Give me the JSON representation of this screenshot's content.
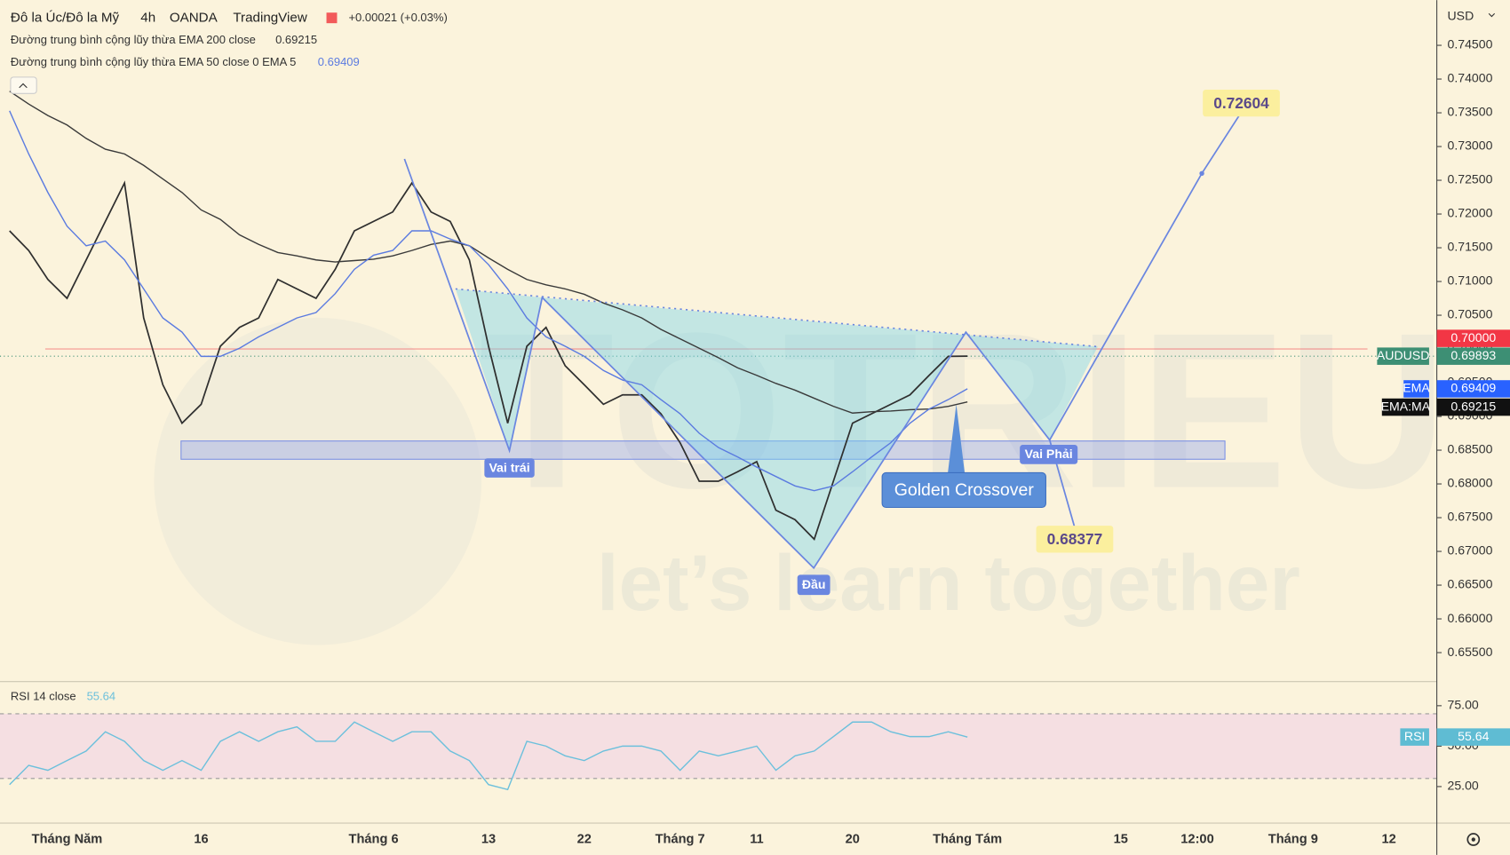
{
  "header": {
    "symbol": "Đô la Úc/Đô la Mỹ",
    "interval": "4h",
    "source": "OANDA",
    "platform": "TradingView",
    "change": "+0.00021 (+0.03%)",
    "currency": "USD"
  },
  "watermark": {
    "title": "TOTRIEU",
    "tagline": "let’s learn together"
  },
  "chart_data": [
    {
      "type": "line",
      "grid": false,
      "categories": [
        null,
        null,
        null,
        "Tháng Năm",
        null,
        null,
        null,
        null,
        null,
        null,
        "16",
        null,
        null,
        null,
        null,
        null,
        null,
        null,
        null,
        "Tháng 6",
        null,
        null,
        null,
        null,
        null,
        "13",
        null,
        null,
        null,
        null,
        "22",
        null,
        null,
        null,
        null,
        "Tháng 7",
        null,
        null,
        null,
        "11",
        null,
        null,
        null,
        null,
        "20",
        null,
        null,
        null,
        null,
        null,
        "Tháng Tám",
        null,
        null,
        null,
        null,
        null,
        null,
        null,
        "15",
        null,
        null,
        null,
        "12:00",
        null,
        null,
        null,
        null,
        "Tháng 9",
        null,
        null,
        null,
        null,
        "12",
        null,
        null
      ],
      "ylim": [
        0.6507,
        0.7517
      ],
      "yticks": [
        {
          "value": 0.655,
          "label": "0.65500"
        },
        {
          "value": 0.66,
          "label": "0.66000"
        },
        {
          "value": 0.665,
          "label": "0.66500"
        },
        {
          "value": 0.67,
          "label": "0.67000"
        },
        {
          "value": 0.675,
          "label": "0.67500"
        },
        {
          "value": 0.68,
          "label": "0.68000"
        },
        {
          "value": 0.685,
          "label": "0.68500"
        },
        {
          "value": 0.69,
          "label": "0.69000"
        },
        {
          "value": 0.695,
          "label": "0.69500"
        },
        {
          "value": 0.7,
          "label": "0.70000"
        },
        {
          "value": 0.705,
          "label": "0.70500"
        },
        {
          "value": 0.71,
          "label": "0.71000"
        },
        {
          "value": 0.715,
          "label": "0.71500"
        },
        {
          "value": 0.72,
          "label": "0.72000"
        },
        {
          "value": 0.725,
          "label": "0.72500"
        },
        {
          "value": 0.73,
          "label": "0.73000"
        },
        {
          "value": 0.735,
          "label": "0.73500"
        },
        {
          "value": 0.74,
          "label": "0.74000"
        },
        {
          "value": 0.745,
          "label": "0.74500"
        }
      ],
      "series": [
        {
          "name": "AUDUSD",
          "color": "#2f2f2f",
          "badge_color": "#3d8f74",
          "values": [
            0.7175,
            0.7146,
            0.7103,
            0.7075,
            0.7132,
            0.7189,
            0.7246,
            0.7046,
            0.6947,
            0.689,
            0.6918,
            0.7004,
            0.7032,
            0.7046,
            0.7103,
            0.7089,
            0.7075,
            0.7118,
            0.7175,
            0.7189,
            0.7203,
            0.7246,
            0.7203,
            0.7189,
            0.7132,
            0.7004,
            0.689,
            0.7004,
            0.7032,
            0.6975,
            0.6947,
            0.6918,
            0.6932,
            0.6932,
            0.6904,
            0.6861,
            0.6804,
            0.6804,
            0.6818,
            0.6833,
            0.6761,
            0.6747,
            0.6718,
            0.6804,
            0.689,
            0.6904,
            0.6918,
            0.6932,
            0.6961,
            0.6989,
            0.69893,
            null,
            null,
            null,
            null,
            null,
            null,
            null,
            null,
            null,
            null,
            null,
            null,
            null,
            null,
            null,
            null,
            null,
            null,
            null,
            null,
            null,
            null,
            null,
            null
          ]
        },
        {
          "name": "Đường trung bình cộng lũy thừa EMA 200 close",
          "badge": "EMA:MA",
          "color": "#3a3a3a",
          "badge_color": "#111111",
          "values": [
            0.7382,
            0.7363,
            0.7346,
            0.7332,
            0.7312,
            0.7296,
            0.7289,
            0.7272,
            0.7252,
            0.7232,
            0.7206,
            0.7192,
            0.7169,
            0.7155,
            0.7143,
            0.7138,
            0.7132,
            0.7129,
            0.7131,
            0.7133,
            0.7138,
            0.7146,
            0.7155,
            0.716,
            0.7153,
            0.7135,
            0.7118,
            0.7103,
            0.7095,
            0.7089,
            0.7081,
            0.7068,
            0.7058,
            0.7046,
            0.7029,
            0.7015,
            0.7001,
            0.6987,
            0.6972,
            0.6961,
            0.6949,
            0.6939,
            0.6927,
            0.6915,
            0.6905,
            0.6907,
            0.6908,
            0.691,
            0.6911,
            0.6915,
            0.69215,
            null,
            null,
            null,
            null,
            null,
            null,
            null,
            null,
            null,
            null,
            null,
            null,
            null,
            null,
            null,
            null,
            null,
            null,
            null,
            null,
            null,
            null,
            null,
            null
          ]
        },
        {
          "name": "Đường trung bình cộng lũy thừa EMA 50 close 0 EMA 5",
          "badge": "EMA",
          "color": "#5b7be0",
          "badge_color": "#2962ff",
          "values": [
            0.7353,
            0.7289,
            0.7232,
            0.7182,
            0.7153,
            0.716,
            0.7132,
            0.7089,
            0.7046,
            0.7025,
            0.6989,
            0.6989,
            0.7001,
            0.7018,
            0.7032,
            0.7046,
            0.7054,
            0.7082,
            0.7118,
            0.7139,
            0.7146,
            0.7175,
            0.7175,
            0.7163,
            0.7153,
            0.7125,
            0.7089,
            0.7046,
            0.7018,
            0.7004,
            0.6989,
            0.6968,
            0.6954,
            0.6947,
            0.6925,
            0.6904,
            0.6875,
            0.6854,
            0.684,
            0.6825,
            0.6811,
            0.6797,
            0.679,
            0.6797,
            0.6818,
            0.684,
            0.6861,
            0.689,
            0.6911,
            0.6925,
            0.69409,
            null,
            null,
            null,
            null,
            null,
            null,
            null,
            null,
            null,
            null,
            null,
            null,
            null,
            null,
            null,
            null,
            null,
            null,
            null,
            null,
            null,
            null,
            null,
            null
          ]
        }
      ],
      "price_lines": [
        {
          "value": 0.7,
          "label": "0.70000",
          "color": "#f23645"
        }
      ],
      "annotations": [
        "Vai trái",
        "Đầu",
        "Vai Phải",
        "Golden Crossover",
        "0.72604",
        "0.68377"
      ]
    },
    {
      "type": "line",
      "title": "RSI 14 close",
      "grid": false,
      "ylim": [
        2.4,
        89.9
      ],
      "yticks": [
        {
          "value": 75,
          "label": "75.00"
        },
        {
          "value": 50,
          "label": "50.00"
        },
        {
          "value": 25,
          "label": "25.00"
        }
      ],
      "band": [
        30,
        70
      ],
      "series": [
        {
          "name": "RSI",
          "color": "#6cc0dc",
          "badge_color": "#5fbcd3",
          "values": [
            26.2,
            38.1,
            35.1,
            41.1,
            47,
            58.9,
            53,
            41.1,
            35.1,
            41.1,
            35.1,
            53,
            58.9,
            53,
            58.9,
            61.9,
            53,
            53,
            64.9,
            58.9,
            53,
            58.9,
            58.9,
            47,
            41.1,
            26.2,
            23.2,
            53,
            50,
            44,
            41.1,
            47,
            50,
            50,
            47,
            35.1,
            47,
            44,
            47,
            50,
            35.1,
            44,
            47,
            55.9,
            64.9,
            64.9,
            58.9,
            55.9,
            55.9,
            58.9,
            55.64,
            null,
            null,
            null,
            null,
            null,
            null,
            null,
            null,
            null,
            null,
            null,
            null,
            null,
            null,
            null,
            null,
            null,
            null,
            null,
            null,
            null,
            null,
            null,
            null
          ]
        }
      ]
    }
  ]
}
